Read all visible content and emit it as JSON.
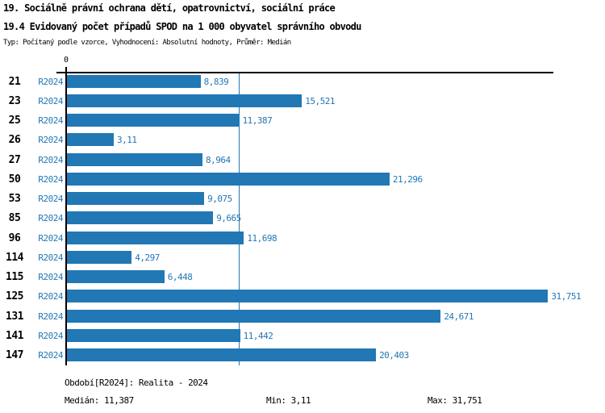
{
  "header": {
    "title_line1": "19. Sociálně právní ochrana dětí, opatrovnictví, sociální práce",
    "title_line2": "19.4 Evidovaný počet případů SPOD na 1 000 obyvatel správního obvodu",
    "meta": "Typ: Počítaný podle vzorce, Vyhodnocení: Absolutní hodnoty, Průměr: Medián"
  },
  "chart_data": {
    "type": "bar",
    "orientation": "horizontal",
    "title": "19.4 Evidovaný počet případů SPOD na 1 000 obyvatel správního obvodu",
    "series_name": "R2024",
    "categories": [
      "21",
      "23",
      "25",
      "26",
      "27",
      "50",
      "53",
      "85",
      "96",
      "114",
      "115",
      "125",
      "131",
      "141",
      "147"
    ],
    "values": [
      8.839,
      15.521,
      11.387,
      3.11,
      8.964,
      21.296,
      9.075,
      9.665,
      11.698,
      4.297,
      6.448,
      31.751,
      24.671,
      11.442,
      20.403
    ],
    "value_labels": [
      "8,839",
      "15,521",
      "11,387",
      "3,11",
      "8,964",
      "21,296",
      "9,075",
      "9,665",
      "11,698",
      "4,297",
      "6,448",
      "31,751",
      "24,671",
      "11,442",
      "20,403"
    ],
    "axis": {
      "zero_label": "0",
      "xlim": [
        0,
        32.2
      ],
      "grid": false
    },
    "median_reference_line": 11.387,
    "colors": {
      "bar": "#2277b5",
      "median_line": "#2277b5",
      "blue_text": "#2277b5",
      "black_text": "#000000"
    }
  },
  "footer": {
    "period": "Období[R2024]: Realita - 2024",
    "median": "Medián: 11,387",
    "min": "Min: 3,11",
    "max": "Max: 31,751"
  }
}
